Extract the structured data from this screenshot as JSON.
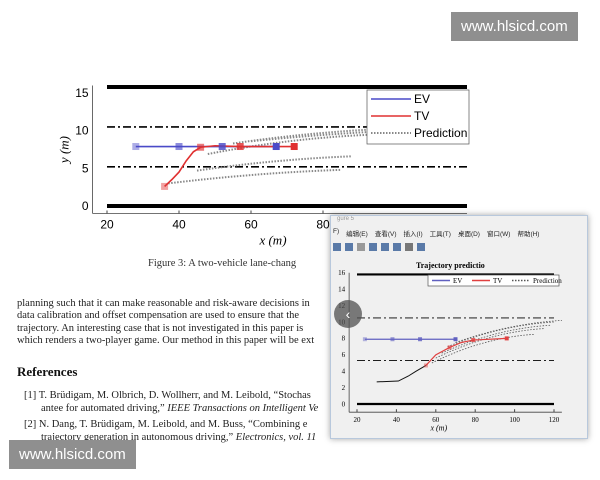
{
  "watermark_top": "www.hlsicd.com",
  "watermark_bottom": "www.hlsicd.com",
  "figure_caption": "Figure 3: A two-vehicle lane-chang",
  "paragraph": [
    "planning such that it can make reasonable and risk-aware decisions in",
    "data calibration and offset compensation are used to ensure that the",
    "trajectory.  An interesting case that is not investigated in this paper is",
    "which renders a two-player game. Our method in this paper will be ext"
  ],
  "references_heading": "References",
  "references": [
    {
      "num": "[1]",
      "line1": "T. Brüdigam, M. Olbrich, D. Wollherr, and M. Leibold, “Stochas",
      "line2a": "antee for automated driving,” ",
      "line2b": "IEEE Transactions on Intelligent Ve"
    },
    {
      "num": "[2]",
      "line1": "N. Dang, T. Brüdigam, M. Leibold, and M. Buss, “Combining e",
      "line2a": "trajectory generation in autonomous driving,” ",
      "line2b": "Electronics, vol. 11"
    }
  ],
  "matlab_window": {
    "title": "gure 5",
    "menu": [
      "F)",
      "编辑(E)",
      "查看(V)",
      "插入(I)",
      "工具(T)",
      "桌面(D)",
      "窗口(W)",
      "帮助(H)"
    ],
    "toolbar_icons": [
      "open-icon",
      "save-icon",
      "print-icon",
      "zoom-icon",
      "layout-icon",
      "panel-icon",
      "pointer-icon",
      "insert-icon"
    ],
    "nav_icon": "chevron-left-icon"
  },
  "chart_data": [
    {
      "type": "line",
      "xlabel": "x (m)",
      "ylabel": "y (m)",
      "xlim": [
        16,
        120
      ],
      "ylim": [
        -1,
        16
      ],
      "xticks": [
        20,
        40,
        60,
        80
      ],
      "yticks": [
        0,
        5,
        10,
        15
      ],
      "legend": [
        "EV",
        "TV",
        "Prediction"
      ],
      "legend_position": "top-right",
      "colors": {
        "EV": "#4a4ac8",
        "TV": "#e03030",
        "Prediction": "#888888"
      },
      "lanes": {
        "solid": [
          0,
          15.8
        ],
        "dashdot": [
          5.2,
          10.5
        ]
      },
      "EV": {
        "x": [
          28,
          40,
          52,
          67
        ],
        "y": [
          7.9,
          7.9,
          7.9,
          7.9
        ]
      },
      "TV": {
        "x": [
          36,
          38,
          40,
          42,
          44,
          46,
          50,
          57,
          72
        ],
        "y": [
          2.6,
          3.5,
          4.5,
          6,
          7.2,
          7.8,
          8,
          7.9,
          7.9
        ],
        "markers_x": [
          36,
          46,
          57,
          72
        ]
      },
      "predictions": [
        [
          [
            37,
            3
          ],
          [
            85,
            4.8
          ]
        ],
        [
          [
            45,
            4.7
          ],
          [
            88,
            6.6
          ]
        ],
        [
          [
            48,
            6.9
          ],
          [
            95,
            9.5
          ]
        ],
        [
          [
            55,
            8.3
          ],
          [
            100,
            10.3
          ]
        ],
        [
          [
            60,
            8.6
          ],
          [
            110,
            10.2
          ]
        ]
      ]
    },
    {
      "type": "line",
      "title": "Trajectory predictio",
      "xlabel": "x (m)",
      "ylabel": "",
      "xlim": [
        16,
        124
      ],
      "ylim": [
        -1,
        16
      ],
      "xticks": [
        20,
        40,
        60,
        80,
        100,
        120
      ],
      "yticks": [
        0,
        2,
        4,
        6,
        8,
        10,
        12,
        14,
        16
      ],
      "legend": [
        "EV",
        "TV",
        "Prediction"
      ],
      "legend_position": "top-right",
      "colors": {
        "EV": "#6060c0",
        "TV": "#e04040",
        "Prediction": "#555555"
      },
      "lanes": {
        "solid": [
          0,
          15.8
        ],
        "dashdot": [
          5.3,
          10.5
        ]
      },
      "EV": {
        "x": [
          24,
          38,
          52,
          70
        ],
        "y": [
          7.9,
          7.9,
          7.9,
          7.9
        ]
      },
      "TV": {
        "x": [
          55,
          60,
          67,
          73,
          79,
          96
        ],
        "y": [
          4.7,
          6,
          6.9,
          7.5,
          7.8,
          8
        ],
        "markers_x": [
          55,
          67,
          79,
          96
        ]
      },
      "history": {
        "x": [
          30,
          41,
          46,
          50,
          55
        ],
        "y": [
          2.7,
          2.8,
          3.4,
          4,
          4.7
        ]
      },
      "predictions": [
        [
          [
            58,
            5
          ],
          [
            110,
            8.5
          ]
        ],
        [
          [
            60,
            5.6
          ],
          [
            115,
            9.2
          ]
        ],
        [
          [
            63,
            6.2
          ],
          [
            118,
            9.6
          ]
        ],
        [
          [
            66,
            7
          ],
          [
            120,
            10
          ]
        ],
        [
          [
            70,
            7.5
          ],
          [
            124,
            10.2
          ]
        ]
      ]
    }
  ]
}
